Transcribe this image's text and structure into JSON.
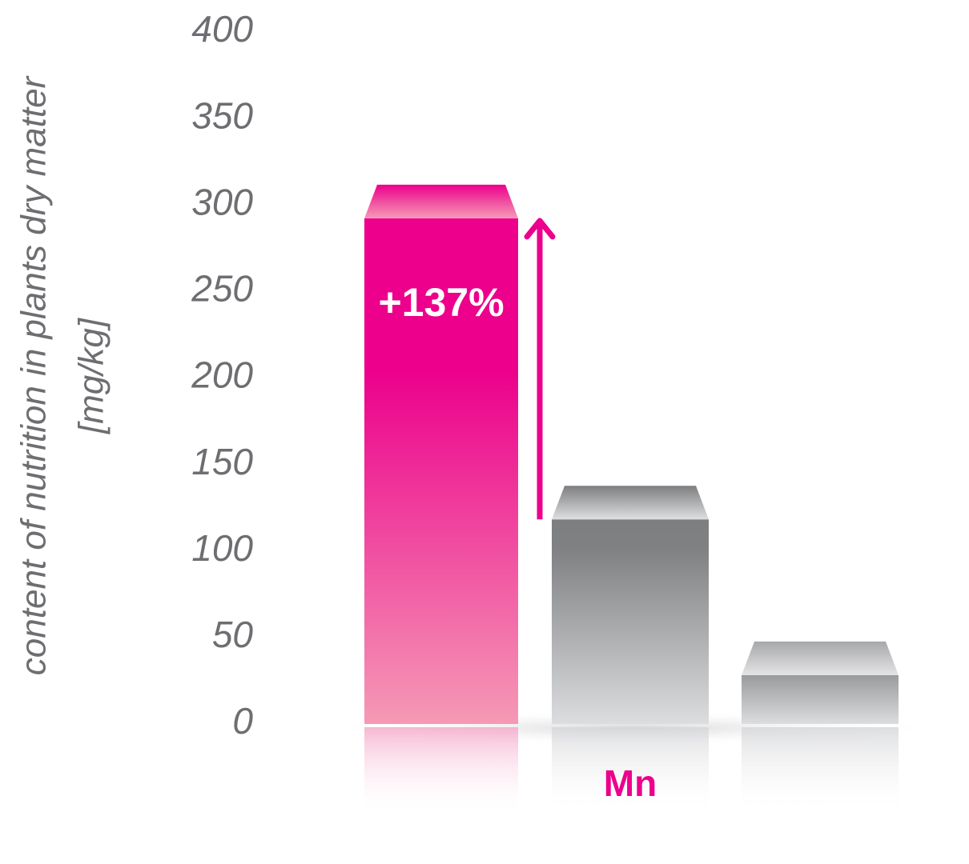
{
  "chart_data": {
    "type": "bar",
    "y_label": [
      "content of nutrition in plants dry matter",
      "[mg/kg]"
    ],
    "categories": [
      null,
      "Mn",
      null
    ],
    "values": [
      302,
      128,
      38
    ],
    "colors": [
      "#ec008c",
      "#808183",
      "#a7a8aa"
    ],
    "annotation": "+137%",
    "ylim": [
      0,
      400
    ],
    "yticks": [
      0,
      50,
      100,
      150,
      200,
      250,
      300,
      350,
      400
    ],
    "grid": false
  }
}
